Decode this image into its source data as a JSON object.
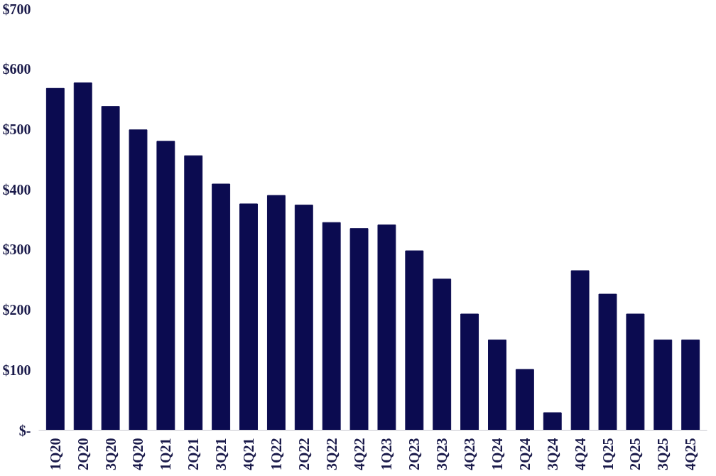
{
  "chart_data": {
    "type": "bar",
    "categories": [
      "1Q20",
      "2Q20",
      "3Q20",
      "4Q20",
      "1Q21",
      "2Q21",
      "3Q21",
      "4Q21",
      "1Q22",
      "2Q22",
      "3Q22",
      "4Q22",
      "1Q23",
      "2Q23",
      "3Q23",
      "4Q23",
      "1Q24",
      "2Q24",
      "3Q24",
      "4Q24",
      "1Q25",
      "2Q25",
      "3Q25",
      "4Q25"
    ],
    "values": [
      568,
      577,
      538,
      499,
      480,
      456,
      409,
      376,
      390,
      374,
      345,
      335,
      341,
      298,
      251,
      193,
      150,
      101,
      29,
      265,
      226,
      193,
      150,
      150
    ],
    "color": "#0b0b50",
    "ylim": [
      0,
      700
    ],
    "yticks": [
      {
        "value": 0,
        "label": "$-"
      },
      {
        "value": 100,
        "label": "$100"
      },
      {
        "value": 200,
        "label": "$200"
      },
      {
        "value": 300,
        "label": "$300"
      },
      {
        "value": 400,
        "label": "$400"
      },
      {
        "value": 500,
        "label": "$500"
      },
      {
        "value": 600,
        "label": "$600"
      },
      {
        "value": 700,
        "label": "$700"
      }
    ],
    "grid": false
  }
}
